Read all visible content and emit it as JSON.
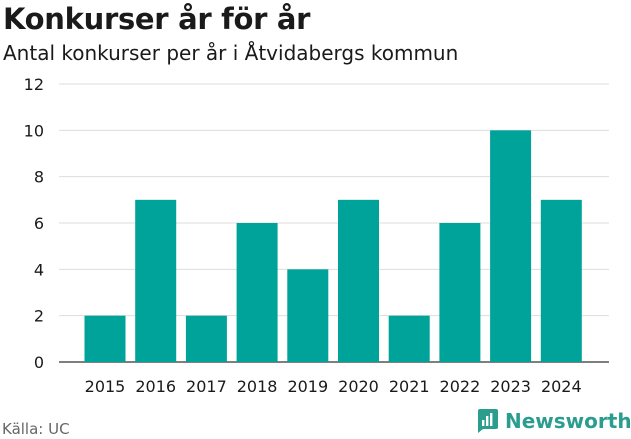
{
  "header": {
    "title": "Konkurser år för år",
    "subtitle": "Antal konkurser per år i Åtvidabergs kommun"
  },
  "footer": {
    "source": "Källa: UC",
    "brand": "Newsworthy",
    "brand_icon": "newsworthy-logo-icon"
  },
  "colors": {
    "bar": "#00a39a",
    "grid": "#dddddd",
    "brand": "#2a9d8f"
  },
  "chart_data": {
    "type": "bar",
    "title": "Konkurser år för år",
    "subtitle": "Antal konkurser per år i Åtvidabergs kommun",
    "xlabel": "",
    "ylabel": "",
    "categories": [
      "2015",
      "2016",
      "2017",
      "2018",
      "2019",
      "2020",
      "2021",
      "2022",
      "2023",
      "2024"
    ],
    "values": [
      2,
      7,
      2,
      6,
      4,
      7,
      2,
      6,
      10,
      7
    ],
    "ylim": [
      0,
      12
    ],
    "yticks": [
      0,
      2,
      4,
      6,
      8,
      10,
      12
    ],
    "grid": true
  }
}
